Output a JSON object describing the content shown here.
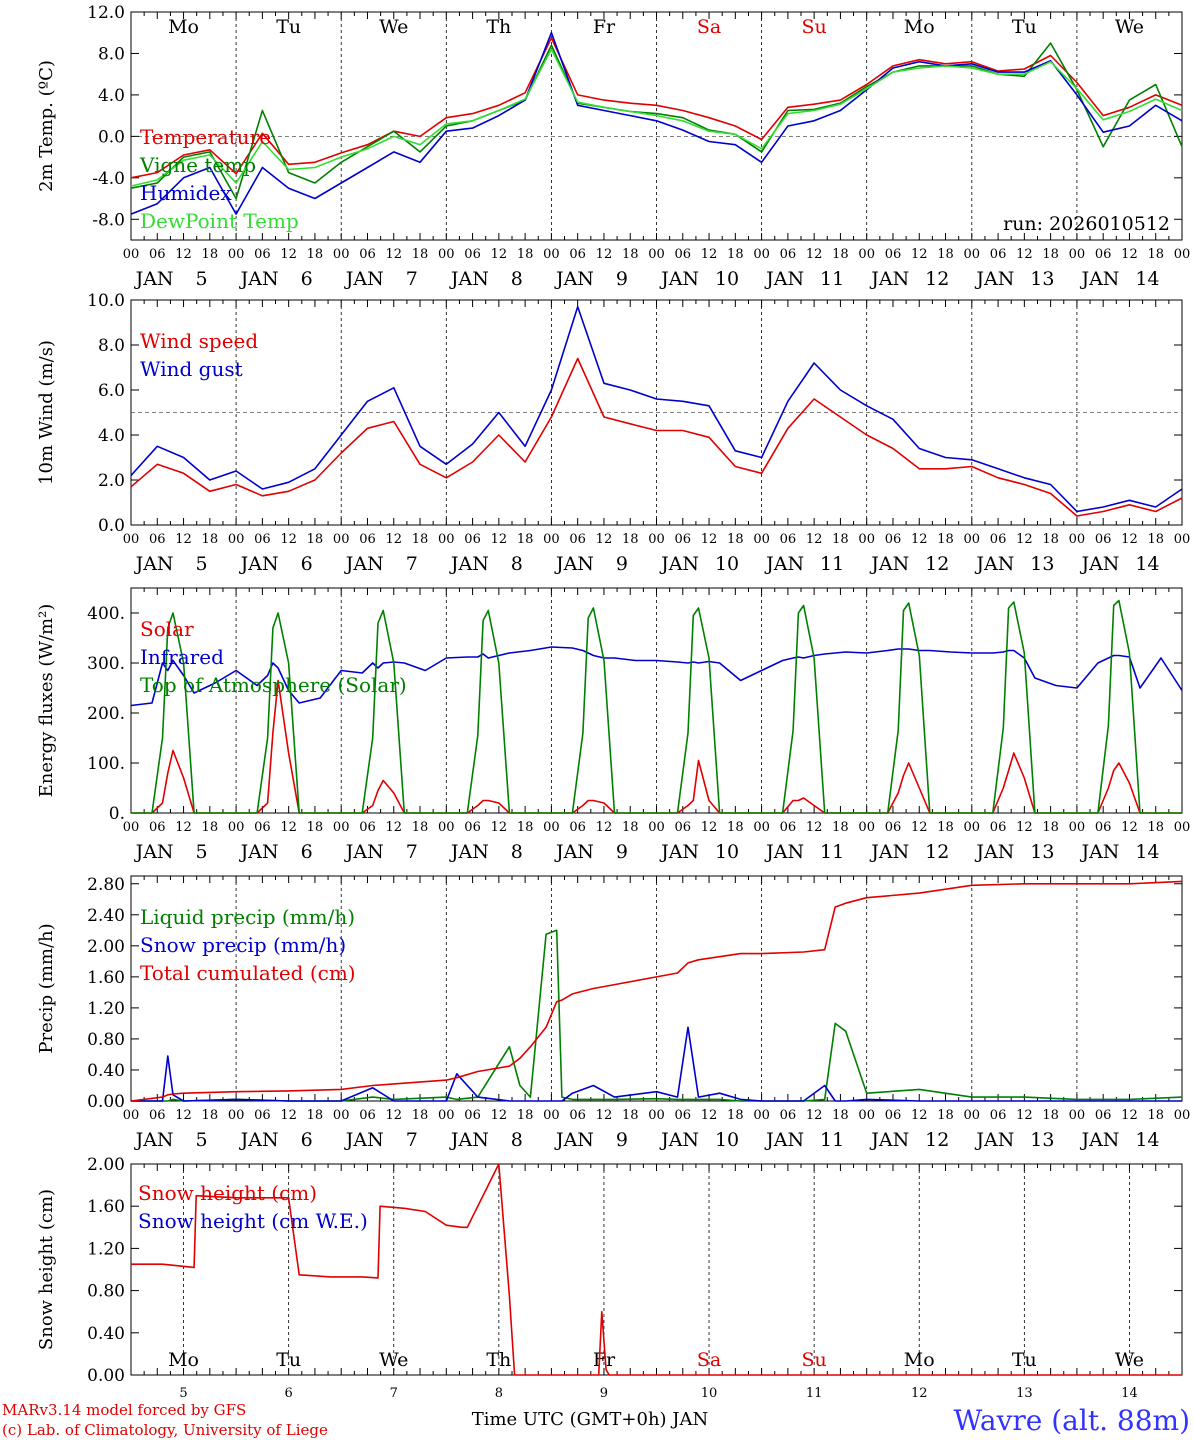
{
  "colors": {
    "red": "#e00000",
    "blue": "#0000cc",
    "green": "#008000",
    "lightgreen": "#33dd33",
    "grey": "#555555"
  },
  "days": [
    "5",
    "6",
    "7",
    "8",
    "9",
    "10",
    "11",
    "12",
    "13",
    "14"
  ],
  "month": "JAN",
  "weekdays": [
    "Mo",
    "Tu",
    "We",
    "Th",
    "Fr",
    "Sa",
    "Su",
    "Mo",
    "Tu",
    "We"
  ],
  "hour_labels": [
    "00",
    "06",
    "12",
    "18"
  ],
  "footer": {
    "line1": "MARv3.14 model forced by GFS",
    "line2": "(c) Lab. of Climatology, University of Liege",
    "axis_title": "Time UTC (GMT+0h) JAN",
    "station": "Wavre (alt. 88m)"
  },
  "chart_data": [
    {
      "type": "line",
      "title": "",
      "ylabel": "2m Temp. (ºC)",
      "ylim": [
        -10,
        12
      ],
      "yticks": [
        "12.0",
        "8.0",
        "4.0",
        "0.0",
        "-4.0",
        "-8.0"
      ],
      "ytick_values": [
        12,
        8,
        4,
        0,
        -4,
        -8
      ],
      "reference_line": 0,
      "run_label": "run: 2026010512",
      "x_days": [
        0,
        0.25,
        0.5,
        0.75,
        1,
        1.25,
        1.5,
        1.75,
        2,
        2.25,
        2.5,
        2.75,
        3,
        3.25,
        3.5,
        3.75,
        4,
        4.25,
        4.5,
        4.75,
        5,
        5.25,
        5.5,
        5.75,
        6,
        6.25,
        6.5,
        6.75,
        7,
        7.25,
        7.5,
        7.75,
        8,
        8.25,
        8.5,
        8.75,
        9,
        9.25,
        9.5,
        9.75,
        10
      ],
      "series": [
        {
          "name": "Temperature",
          "color": "red",
          "values": [
            -4,
            -3.5,
            -1.8,
            -1.3,
            -3.6,
            0.3,
            -2.7,
            -2.5,
            -1.6,
            -0.8,
            0.5,
            0,
            1.8,
            2.2,
            3,
            4.2,
            9.5,
            4,
            3.5,
            3.2,
            3,
            2.5,
            1.8,
            1,
            -0.3,
            2.8,
            3.1,
            3.5,
            5,
            6.8,
            7.4,
            7,
            7.2,
            6.3,
            6.5,
            7.8,
            5.2,
            2,
            2.8,
            4,
            3
          ]
        },
        {
          "name": "Vigne temp",
          "color": "green",
          "values": [
            -5,
            -4.5,
            -2,
            -1.5,
            -6,
            2.5,
            -3.5,
            -4.5,
            -2.5,
            -1,
            0.5,
            -1.5,
            1,
            1.5,
            2.5,
            3.5,
            8.8,
            3.2,
            2.8,
            2.4,
            2.2,
            1.8,
            0.6,
            0.2,
            -1.5,
            2.5,
            2.6,
            3.2,
            4.8,
            6.2,
            6.8,
            6.8,
            6.8,
            6,
            5.8,
            9,
            4.5,
            -1,
            3.5,
            5,
            -1
          ]
        },
        {
          "name": "Humidex",
          "color": "blue",
          "values": [
            -7.5,
            -6.5,
            -4,
            -3,
            -7.5,
            -3,
            -5,
            -6,
            -4.5,
            -3,
            -1.5,
            -2.5,
            0.5,
            0.8,
            2,
            3.5,
            10,
            3,
            2.5,
            2,
            1.5,
            0.6,
            -0.5,
            -0.8,
            -2.5,
            1,
            1.5,
            2.5,
            4.5,
            6.6,
            7.2,
            6.8,
            7,
            6.2,
            6.2,
            7.3,
            4,
            0.4,
            1,
            3,
            1.5
          ]
        },
        {
          "name": "DewPoint Temp",
          "color": "lightgreen",
          "values": [
            -4.8,
            -4.2,
            -2.3,
            -1.8,
            -4.5,
            -0.5,
            -3.2,
            -3,
            -2,
            -1.2,
            0,
            -0.8,
            1.2,
            1.5,
            2.5,
            3.6,
            8.4,
            3.3,
            2.8,
            2.4,
            2,
            1.5,
            0.5,
            0.2,
            -1.2,
            2.2,
            2.5,
            3.1,
            4.6,
            6.2,
            6.6,
            6.8,
            6.6,
            6,
            6,
            7.2,
            4.6,
            1.6,
            2.4,
            3.6,
            2.5
          ]
        }
      ]
    },
    {
      "type": "line",
      "ylabel": "10m Wind (m/s)",
      "ylim": [
        0,
        10
      ],
      "yticks": [
        "10.0",
        "8.0",
        "6.0",
        "4.0",
        "2.0",
        "0.0"
      ],
      "ytick_values": [
        10,
        8,
        6,
        4,
        2,
        0
      ],
      "reference_line": 5,
      "x_days": [
        0,
        0.25,
        0.5,
        0.75,
        1,
        1.25,
        1.5,
        1.75,
        2,
        2.25,
        2.5,
        2.75,
        3,
        3.25,
        3.5,
        3.75,
        4,
        4.25,
        4.5,
        4.75,
        5,
        5.25,
        5.5,
        5.75,
        6,
        6.25,
        6.5,
        6.75,
        7,
        7.25,
        7.5,
        7.75,
        8,
        8.25,
        8.5,
        8.75,
        9,
        9.25,
        9.5,
        9.75,
        10
      ],
      "series": [
        {
          "name": "Wind speed",
          "color": "red",
          "values": [
            1.7,
            2.7,
            2.3,
            1.5,
            1.8,
            1.3,
            1.5,
            2,
            3.2,
            4.3,
            4.6,
            2.7,
            2.1,
            2.8,
            4,
            2.8,
            4.8,
            7.4,
            4.8,
            4.5,
            4.2,
            4.2,
            3.9,
            2.6,
            2.3,
            4.3,
            5.6,
            4.8,
            4,
            3.4,
            2.5,
            2.5,
            2.6,
            2.1,
            1.8,
            1.4,
            0.4,
            0.6,
            0.9,
            0.6,
            1.2
          ]
        },
        {
          "name": "Wind gust",
          "color": "blue",
          "values": [
            2.2,
            3.5,
            3,
            2,
            2.4,
            1.6,
            1.9,
            2.5,
            4,
            5.5,
            6.1,
            3.5,
            2.7,
            3.6,
            5,
            3.5,
            6,
            9.7,
            6.3,
            6,
            5.6,
            5.5,
            5.3,
            3.3,
            3,
            5.5,
            7.2,
            6,
            5.3,
            4.7,
            3.4,
            3,
            2.9,
            2.5,
            2.1,
            1.8,
            0.6,
            0.8,
            1.1,
            0.8,
            1.6
          ]
        }
      ]
    },
    {
      "type": "line",
      "ylabel": "Energy fluxes (W/m²)",
      "ylim": [
        0,
        450
      ],
      "yticks": [
        "400.",
        "300.",
        "200.",
        "100.",
        "0."
      ],
      "ytick_values": [
        400,
        300,
        200,
        100,
        0
      ],
      "x_days": [
        0,
        0.2,
        0.3,
        0.35,
        0.4,
        0.5,
        0.6,
        0.8,
        1,
        1.2,
        1.3,
        1.35,
        1.4,
        1.5,
        1.6,
        1.8,
        2,
        2.2,
        2.3,
        2.35,
        2.4,
        2.5,
        2.6,
        2.8,
        3,
        3.2,
        3.3,
        3.35,
        3.4,
        3.5,
        3.6,
        3.8,
        4,
        4.2,
        4.3,
        4.35,
        4.4,
        4.5,
        4.6,
        4.8,
        5,
        5.2,
        5.3,
        5.35,
        5.4,
        5.5,
        5.6,
        5.8,
        6,
        6.2,
        6.3,
        6.35,
        6.4,
        6.5,
        6.6,
        6.8,
        7,
        7.2,
        7.3,
        7.35,
        7.4,
        7.5,
        7.6,
        7.8,
        8,
        8.2,
        8.3,
        8.35,
        8.4,
        8.5,
        8.6,
        8.8,
        9,
        9.2,
        9.3,
        9.35,
        9.4,
        9.5,
        9.6,
        9.8,
        10
      ],
      "series": [
        {
          "name": "Solar",
          "color": "red",
          "values": [
            0,
            0,
            20,
            80,
            125,
            70,
            0,
            0,
            0,
            0,
            20,
            160,
            265,
            120,
            0,
            0,
            0,
            0,
            15,
            45,
            65,
            40,
            0,
            0,
            0,
            0,
            15,
            25,
            25,
            20,
            0,
            0,
            0,
            0,
            15,
            25,
            25,
            20,
            0,
            0,
            0,
            0,
            15,
            25,
            105,
            25,
            0,
            0,
            0,
            0,
            25,
            25,
            30,
            15,
            0,
            0,
            0,
            0,
            40,
            75,
            100,
            50,
            0,
            0,
            0,
            0,
            50,
            85,
            120,
            70,
            0,
            0,
            0,
            0,
            50,
            85,
            100,
            60,
            0,
            0,
            0
          ]
        },
        {
          "name": "Infrared",
          "color": "blue",
          "values": [
            215,
            220,
            300,
            285,
            305,
            275,
            240,
            260,
            285,
            255,
            275,
            300,
            290,
            245,
            220,
            230,
            285,
            280,
            300,
            290,
            300,
            302,
            300,
            285,
            310,
            312,
            312,
            318,
            310,
            315,
            320,
            325,
            332,
            330,
            325,
            320,
            315,
            310,
            310,
            305,
            305,
            302,
            300,
            302,
            300,
            303,
            300,
            265,
            285,
            305,
            310,
            312,
            310,
            315,
            318,
            322,
            320,
            325,
            328,
            328,
            328,
            325,
            325,
            322,
            320,
            320,
            322,
            325,
            325,
            310,
            270,
            255,
            250,
            300,
            310,
            315,
            315,
            312,
            250,
            310,
            245
          ]
        },
        {
          "name": "Top of Atmosphere (Solar)",
          "color": "green",
          "values": [
            0,
            0,
            150,
            370,
            400,
            300,
            0,
            0,
            0,
            0,
            150,
            370,
            400,
            300,
            0,
            0,
            0,
            0,
            150,
            380,
            405,
            300,
            0,
            0,
            0,
            0,
            155,
            385,
            405,
            300,
            0,
            0,
            0,
            0,
            160,
            390,
            410,
            305,
            0,
            0,
            0,
            0,
            160,
            395,
            410,
            310,
            0,
            0,
            0,
            0,
            165,
            400,
            415,
            310,
            0,
            0,
            0,
            0,
            165,
            405,
            420,
            315,
            0,
            0,
            0,
            0,
            170,
            410,
            422,
            320,
            0,
            0,
            0,
            0,
            175,
            415,
            425,
            320,
            0,
            0,
            0
          ]
        }
      ]
    },
    {
      "type": "line",
      "ylabel": "Precip (mm/h)",
      "ylim": [
        0,
        2.9
      ],
      "yticks": [
        "2.80",
        "2.40",
        "2.00",
        "1.60",
        "1.20",
        "0.80",
        "0.40",
        "0.00"
      ],
      "ytick_values": [
        2.8,
        2.4,
        2,
        1.6,
        1.2,
        0.8,
        0.4,
        0
      ],
      "x_days": [
        0,
        0.3,
        0.35,
        0.4,
        0.5,
        1,
        1.5,
        2,
        2.3,
        2.5,
        3,
        3.1,
        3.3,
        3.6,
        3.7,
        3.8,
        3.95,
        4.05,
        4.1,
        4.2,
        4.4,
        4.6,
        5,
        5.2,
        5.3,
        5.4,
        5.6,
        5.8,
        6,
        6.4,
        6.6,
        6.7,
        6.8,
        7,
        7.5,
        8,
        8.5,
        9,
        9.5,
        10
      ],
      "series": [
        {
          "name": "Liquid precip (mm/h)",
          "color": "green",
          "values": [
            0,
            0,
            0,
            0.02,
            0,
            0.02,
            0,
            0,
            0.05,
            0.02,
            0.05,
            0.02,
            0.05,
            0.7,
            0.2,
            0.05,
            2.15,
            2.2,
            0.05,
            0.02,
            0.02,
            0.02,
            0.03,
            0.02,
            0.02,
            0.02,
            0.02,
            0,
            0,
            0,
            0.02,
            1.0,
            0.9,
            0.1,
            0.15,
            0.05,
            0.05,
            0.02,
            0.02,
            0.05
          ]
        },
        {
          "name": "Snow precip (mm/h)",
          "color": "blue",
          "values": [
            0,
            0,
            0.58,
            0.08,
            0,
            0.02,
            0,
            0,
            0.17,
            0,
            0,
            0.35,
            0.05,
            0,
            0,
            0,
            0,
            0,
            0,
            0.1,
            0.2,
            0.05,
            0.12,
            0.05,
            0.95,
            0.05,
            0.1,
            0.02,
            0,
            0,
            0.2,
            0,
            0,
            0.02,
            0,
            0,
            0,
            0,
            0,
            0
          ]
        },
        {
          "name": "Total cumulated (cm)",
          "color": "red",
          "values": [
            0,
            0.05,
            0.08,
            0.09,
            0.1,
            0.12,
            0.13,
            0.15,
            0.2,
            0.22,
            0.27,
            0.3,
            0.38,
            0.45,
            0.55,
            0.7,
            0.95,
            1.28,
            1.3,
            1.38,
            1.45,
            1.5,
            1.6,
            1.65,
            1.78,
            1.82,
            1.86,
            1.9,
            1.9,
            1.92,
            1.95,
            2.5,
            2.55,
            2.62,
            2.68,
            2.78,
            2.8,
            2.8,
            2.8,
            2.83
          ]
        }
      ]
    },
    {
      "type": "line",
      "ylabel": "Snow height (cm)",
      "ylim": [
        0,
        2.0
      ],
      "yticks": [
        "2.00",
        "1.60",
        "1.20",
        "0.80",
        "0.40",
        "0.00"
      ],
      "ytick_values": [
        2,
        1.6,
        1.2,
        0.8,
        0.4,
        0
      ],
      "x_days": [
        0,
        0.3,
        0.6,
        0.62,
        1,
        1.5,
        1.6,
        1.9,
        2.2,
        2.35,
        2.37,
        2.6,
        2.8,
        3,
        3.15,
        3.2,
        3.5,
        3.6,
        3.65,
        4.2,
        4.45,
        4.48,
        4.52,
        4.55,
        4.6,
        10
      ],
      "series": [
        {
          "name": "Snow height (cm)",
          "color": "red",
          "values": [
            1.05,
            1.05,
            1.02,
            1.7,
            1.68,
            1.68,
            0.95,
            0.93,
            0.93,
            0.92,
            1.6,
            1.58,
            1.55,
            1.42,
            1.4,
            1.4,
            2.02,
            0.75,
            0,
            0,
            0,
            0.6,
            0.05,
            0,
            0,
            0
          ]
        },
        {
          "name": "Snow height (cm W.E.)",
          "color": "blue",
          "values": []
        }
      ]
    }
  ]
}
